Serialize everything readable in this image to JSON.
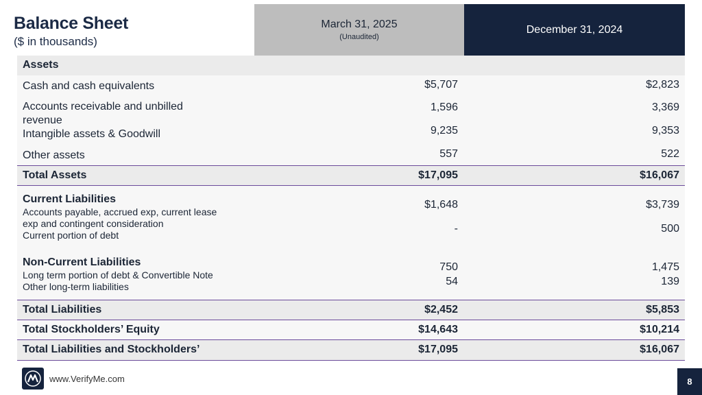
{
  "header": {
    "title": "Balance Sheet",
    "subtitle": "($ in thousands)",
    "col1_main": "March 31, 2025",
    "col1_sub": "(Unaudited)",
    "col2_main": "December 31, 2024"
  },
  "assets": {
    "section_label": "Assets",
    "rows": [
      {
        "label": "Cash and cash equivalents",
        "v1": "$5,707",
        "v2": "$2,823"
      },
      {
        "label_line1": "Accounts receivable and unbilled",
        "label_line2": "revenue",
        "v1": "1,596",
        "v2": "3,369"
      },
      {
        "label": "Intangible assets & Goodwill",
        "v1": "9,235",
        "v2": "9,353"
      },
      {
        "label": "Other assets",
        "v1": "557",
        "v2": "522"
      }
    ],
    "total": {
      "label": "Total Assets",
      "v1": "$17,095",
      "v2": "$16,067"
    }
  },
  "current_liabilities": {
    "heading": "Current Liabilities",
    "line1": "Accounts payable, accrued exp, current lease",
    "line2": "exp and contingent consideration",
    "line3": "Current portion of debt",
    "ap_v1": "$1,648",
    "ap_v2": "$3,739",
    "debt_v1": "-",
    "debt_v2": "500"
  },
  "noncurrent_liabilities": {
    "heading": "Non-Current Liabilities",
    "line1": "Long term portion of debt & Convertible Note",
    "line2": "Other long-term liabilities",
    "lt_v1": "750",
    "lt_v2": "1,475",
    "other_v1": "54",
    "other_v2": "139"
  },
  "totals": [
    {
      "label": "Total Liabilities",
      "v1": "$2,452",
      "v2": "$5,853"
    },
    {
      "label": "Total Stockholders’ Equity",
      "v1": "$14,643",
      "v2": "$10,214"
    },
    {
      "label": "Total Liabilities and Stockholders’",
      "v1": "$17,095",
      "v2": "$16,067"
    }
  ],
  "footer": {
    "url": "www.VerifyMe.com",
    "page_number": "8",
    "logo_icon": "verifyme-logo-icon"
  }
}
